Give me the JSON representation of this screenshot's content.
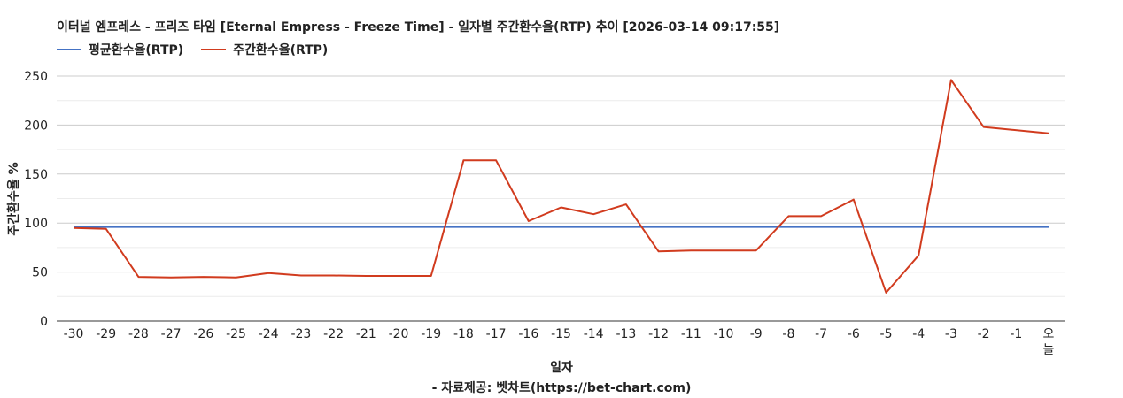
{
  "chart_data": {
    "type": "line",
    "title": "이터널 엠프레스 - 프리즈 타임 [Eternal Empress - Freeze Time] - 일자별 주간환수율(RTP) 추이 [2026-03-14 09:17:55]",
    "xlabel": "일자",
    "ylabel": "주간환수율 %",
    "credit": "- 자료제공: 벳차트(https://bet-chart.com)",
    "categories": [
      "-30",
      "-29",
      "-28",
      "-27",
      "-26",
      "-25",
      "-24",
      "-23",
      "-22",
      "-21",
      "-20",
      "-19",
      "-18",
      "-17",
      "-16",
      "-15",
      "-14",
      "-13",
      "-12",
      "-11",
      "-10",
      "-9",
      "-8",
      "-7",
      "-6",
      "-5",
      "-4",
      "-3",
      "-2",
      "-1",
      "오늘"
    ],
    "ylim": [
      0,
      250
    ],
    "yticks": [
      0,
      50,
      100,
      150,
      200,
      250
    ],
    "grid": true,
    "legend_position": "top-left",
    "series": [
      {
        "name": "평균환수율(RTP)",
        "color": "#4472c4",
        "values": [
          96,
          96,
          96,
          96,
          96,
          96,
          96,
          96,
          96,
          96,
          96,
          96,
          96,
          96,
          96,
          96,
          96,
          96,
          96,
          96,
          96,
          96,
          96,
          96,
          96,
          96,
          96,
          96,
          96,
          96,
          96
        ]
      },
      {
        "name": "주간환수율(RTP)",
        "color": "#d13b1e",
        "values": [
          95,
          94,
          45,
          44.5,
          45,
          44.5,
          49,
          46.5,
          46.5,
          46,
          46,
          46,
          164,
          164,
          102,
          116,
          109,
          119,
          71,
          72,
          72,
          72,
          107,
          107,
          124,
          29,
          67,
          246,
          198,
          null,
          191.5
        ]
      }
    ]
  }
}
